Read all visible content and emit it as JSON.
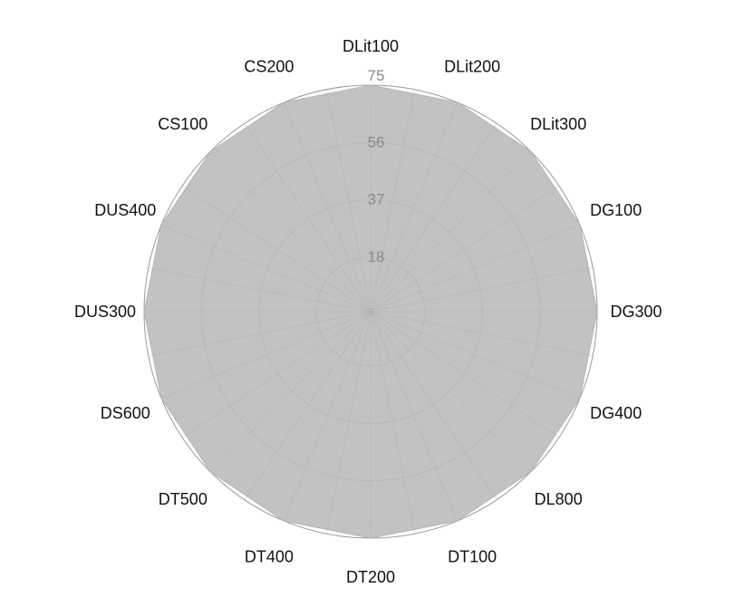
{
  "chart_data": {
    "type": "radar",
    "categories": [
      "DLit100",
      "DLit200",
      "DLit300",
      "DG100",
      "DG300",
      "DG400",
      "DL800",
      "DT100",
      "DT200",
      "DT400",
      "DT500",
      "DS600",
      "DUS300",
      "DUS400",
      "CS100",
      "CS200"
    ],
    "series": [
      {
        "values": [
          75,
          75,
          75,
          75,
          75,
          75,
          75,
          75,
          75,
          75,
          75,
          75,
          75,
          75,
          75,
          75
        ]
      }
    ],
    "r_ticks": [
      18,
      37,
      56,
      75
    ],
    "rlim": [
      0,
      75
    ],
    "grid": true,
    "colors": {
      "fill": "#c2c2c2",
      "grid": "#a6a6a6",
      "outline": "#9a9a9a"
    }
  }
}
